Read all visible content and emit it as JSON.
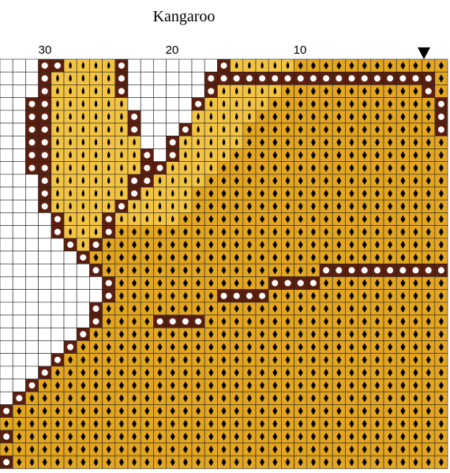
{
  "title": "Kangaroo",
  "column_labels": [
    "30",
    "20",
    "10"
  ]
}
